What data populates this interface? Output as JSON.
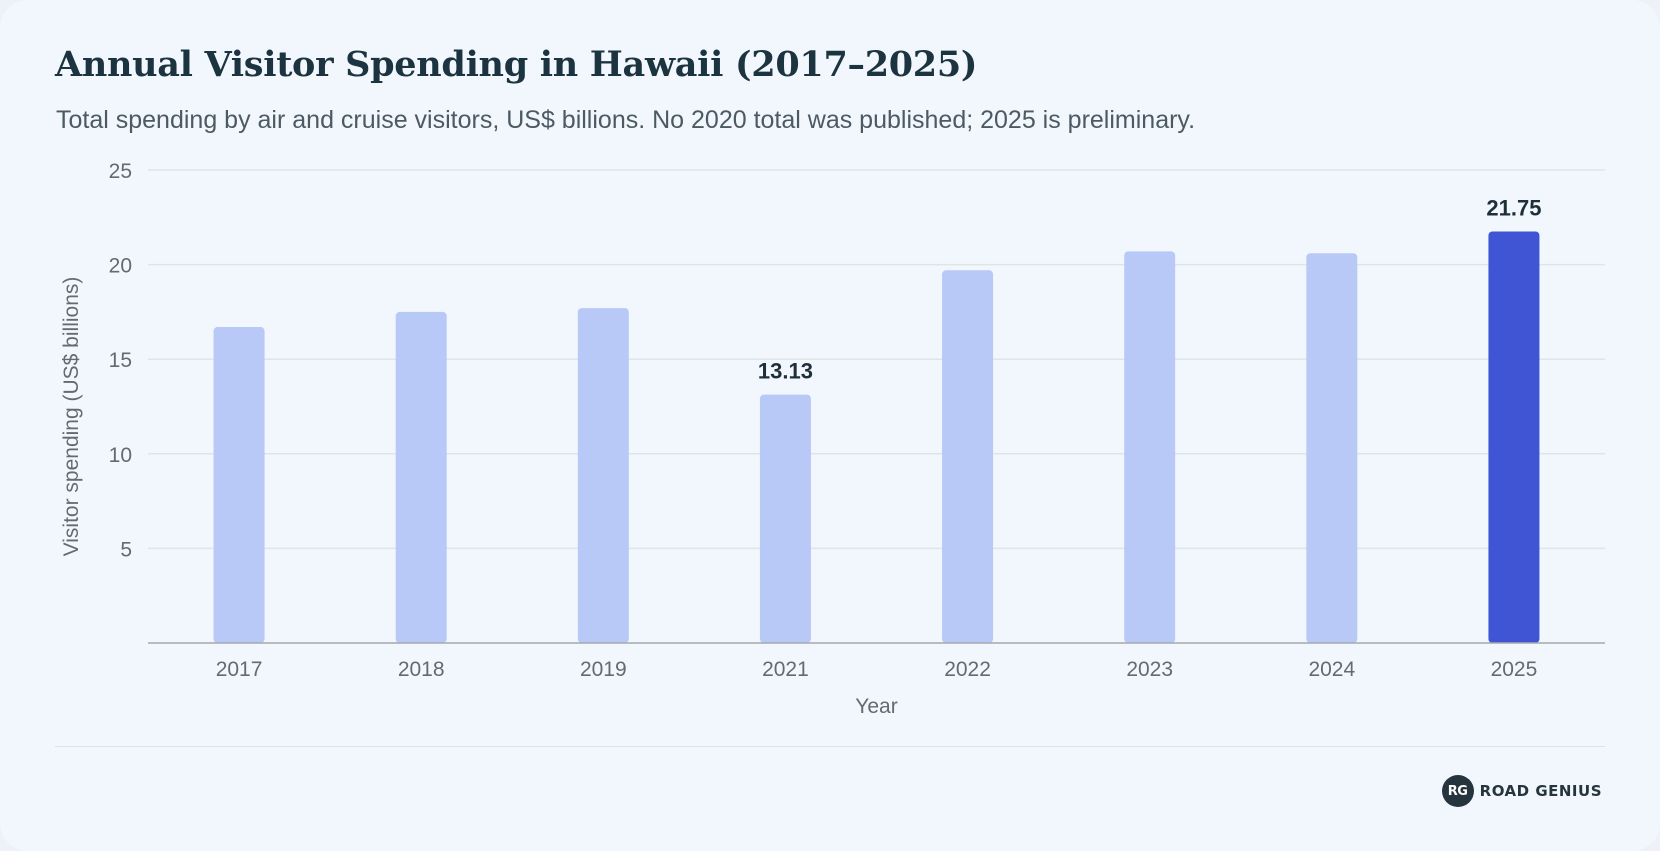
{
  "header": {
    "title": "Annual Visitor Spending in Hawaii (2017–2025)",
    "subtitle": "Total spending by air and cruise visitors, US$ billions. No 2020 total was published; 2025 is preliminary."
  },
  "brand": {
    "icon_text": "RG",
    "name": "ROAD GENIUS"
  },
  "colors": {
    "bar": "#b9c9f7",
    "bar_highlight": "#3f55d4",
    "grid": "#dde5e5",
    "axis": "#a3a9ad",
    "tick_text": "#636b70",
    "label_text": "#1f2f3a"
  },
  "chart_data": {
    "type": "bar",
    "xlabel": "Year",
    "ylabel": "Visitor spending (US$ billions)",
    "categories": [
      "2017",
      "2018",
      "2019",
      "2021",
      "2022",
      "2023",
      "2024",
      "2025"
    ],
    "values": [
      16.7,
      17.5,
      17.7,
      13.13,
      19.7,
      20.7,
      20.6,
      21.75
    ],
    "ylim": [
      0,
      25
    ],
    "yticks": [
      5,
      10,
      15,
      20,
      25
    ],
    "grid": true,
    "highlight_index": 7,
    "data_labels": [
      {
        "index": 3,
        "text": "13.13"
      },
      {
        "index": 7,
        "text": "21.75"
      }
    ]
  }
}
